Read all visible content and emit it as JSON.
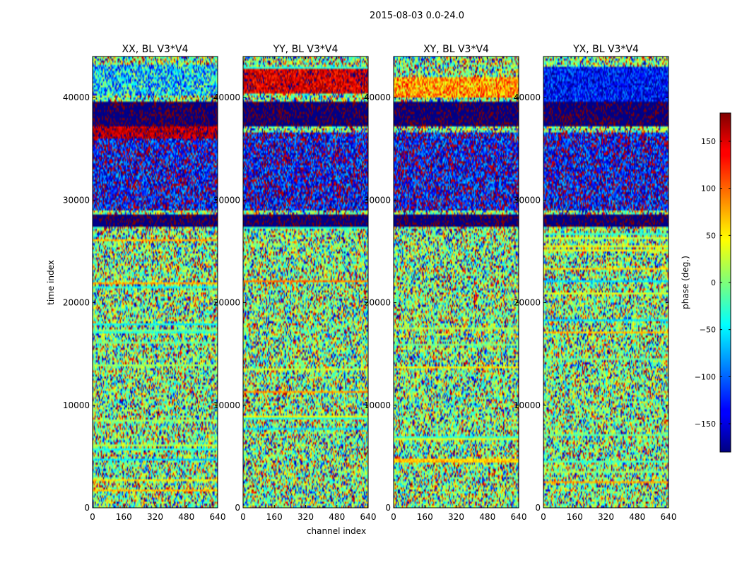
{
  "chart_data": {
    "type": "heatmap",
    "suptitle": "2015-08-03 0.0-24.0",
    "xlabel": "channel index",
    "ylabel": "time index",
    "x_ticks": [
      0,
      160,
      320,
      480,
      640
    ],
    "y_ticks": [
      0,
      10000,
      20000,
      30000,
      40000
    ],
    "xlim": [
      0,
      640
    ],
    "ylim": [
      0,
      44000
    ],
    "colormap": "jet",
    "colorbar": {
      "label": "phase (deg.)",
      "range": [
        -180,
        180
      ],
      "ticks": [
        150,
        100,
        50,
        0,
        -50,
        -100,
        -150
      ],
      "tick_labels": [
        "150",
        "100",
        "50",
        "0",
        "−50",
        "−100",
        "−150"
      ]
    },
    "panels": [
      {
        "title": "XX, BL V3*V4",
        "seed": 11
      },
      {
        "title": "YY, BL V3*V4",
        "seed": 23
      },
      {
        "title": "XY, BL V3*V4",
        "seed": 37
      },
      {
        "title": "YX, BL V3*V4",
        "seed": 53
      }
    ],
    "bands": [
      {
        "t0": 27500,
        "t1": 28600,
        "phase": -178,
        "noise": 4,
        "panels": [
          0,
          1,
          2,
          3
        ]
      },
      {
        "t0": 37300,
        "t1": 39600,
        "phase": -178,
        "noise": 4,
        "panels": [
          0,
          1,
          2,
          3
        ]
      },
      {
        "t0": 40200,
        "t1": 43200,
        "phase": -60,
        "noise": 90,
        "panels": [
          0
        ]
      },
      {
        "t0": 36000,
        "t1": 37200,
        "phase": 160,
        "noise": 30,
        "panels": [
          0
        ]
      },
      {
        "t0": 40500,
        "t1": 42800,
        "phase": 150,
        "noise": 40,
        "panels": [
          1
        ]
      },
      {
        "t0": 28200,
        "t1": 28400,
        "phase": 70,
        "noise": 10,
        "panels": [
          1
        ]
      },
      {
        "t0": 40000,
        "t1": 42000,
        "phase": 80,
        "noise": 60,
        "panels": [
          2
        ]
      },
      {
        "t0": 38500,
        "t1": 43000,
        "phase": -130,
        "noise": 50,
        "panels": [
          3
        ]
      },
      {
        "t0": 29000,
        "t1": 36500,
        "phase": -140,
        "noise": 80,
        "panels": [
          0,
          1,
          2,
          3
        ]
      }
    ]
  }
}
